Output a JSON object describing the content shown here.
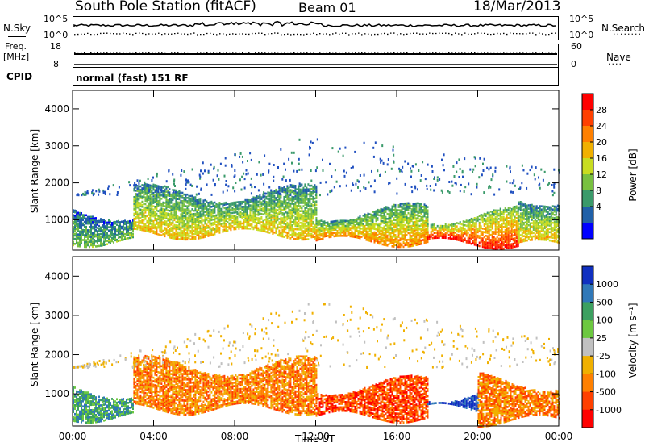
{
  "header": {
    "station": "South Pole Station (fitACF)",
    "beam": "Beam 01",
    "date": "18/Mar/2013"
  },
  "strip_panels": {
    "nsky_label": "N.Sky",
    "nsearch_label": "N.Search",
    "nsky_ticks": [
      "10^5",
      "10^0"
    ],
    "nsearch_ticks": [
      "10^5",
      "10^0"
    ],
    "freq_label_1": "Freq.",
    "freq_label_2": "[MHz]",
    "freq_ticks": [
      "18",
      "8"
    ],
    "nave_label": "Nave",
    "nave_ticks": [
      "60",
      "0"
    ],
    "cpid_label": "CPID",
    "cpid_value": "normal (fast) 151 RF"
  },
  "chart_data": [
    {
      "type": "heatmap",
      "name": "power",
      "ylabel": "Slant Range [km]",
      "yticks": [
        "4000",
        "3000",
        "2000",
        "1000"
      ],
      "ytick_values": [
        4000,
        3000,
        2000,
        1000
      ],
      "ylim": [
        180,
        4500
      ],
      "xlim_hours": [
        0,
        24
      ],
      "colorbar_label": "Power [dB]",
      "colorbar_ticks": [
        "28",
        "24",
        "20",
        "16",
        "12",
        "8",
        "4"
      ],
      "colorbar_colors": [
        "#ff0000",
        "#ff4000",
        "#ff8000",
        "#f0b000",
        "#c8dc20",
        "#78c040",
        "#3a9a6a",
        "#2060a8",
        "#0000ff"
      ],
      "description_bands": [
        {
          "t0": 0.0,
          "t1": 3.0,
          "r0": 400,
          "r1": 1200,
          "level": 3
        },
        {
          "t0": 3.0,
          "t1": 12.0,
          "r0": 600,
          "r1": 1700,
          "level": 5
        },
        {
          "t0": 12.0,
          "t1": 17.5,
          "r0": 400,
          "r1": 1200,
          "level": 6
        },
        {
          "t0": 17.5,
          "t1": 22.0,
          "r0": 350,
          "r1": 1100,
          "level": 8
        },
        {
          "t0": 22.0,
          "t1": 24.0,
          "r0": 300,
          "r1": 1600,
          "level": 5
        }
      ]
    },
    {
      "type": "heatmap",
      "name": "velocity",
      "ylabel": "Slant Range [km]",
      "yticks": [
        "4000",
        "3000",
        "2000",
        "1000"
      ],
      "ytick_values": [
        4000,
        3000,
        2000,
        1000
      ],
      "ylim": [
        180,
        4500
      ],
      "xlim_hours": [
        0,
        24
      ],
      "colorbar_label": "Velocity [m s⁻¹]",
      "colorbar_ticks": [
        "1000",
        "500",
        "100",
        "25",
        "-25",
        "-100",
        "-500",
        "-1000"
      ],
      "colorbar_colors": [
        "#1030c0",
        "#3078b8",
        "#3ca060",
        "#6cc840",
        "#c0c0c0",
        "#f0b000",
        "#ff8000",
        "#ff4000",
        "#ff0000"
      ],
      "description_bands": [
        {
          "t0": 0.0,
          "t1": 3.0,
          "r0": 400,
          "r1": 1100,
          "level": 2
        },
        {
          "t0": 3.0,
          "t1": 12.0,
          "r0": 600,
          "r1": 1700,
          "level": 6
        },
        {
          "t0": 12.0,
          "t1": 17.5,
          "r0": 400,
          "r1": 1200,
          "level": 7
        },
        {
          "t0": 17.5,
          "t1": 20.0,
          "r0": 600,
          "r1": 1000,
          "level": 0
        },
        {
          "t0": 20.0,
          "t1": 24.0,
          "r0": 300,
          "r1": 1300,
          "level": 6
        }
      ]
    }
  ],
  "x_axis": {
    "label": "Time UT",
    "ticks": [
      "00:00",
      "04:00",
      "08:00",
      "12:00",
      "16:00",
      "20:00",
      "00:00"
    ],
    "tick_hours": [
      0,
      4,
      8,
      12,
      16,
      20,
      24
    ]
  }
}
